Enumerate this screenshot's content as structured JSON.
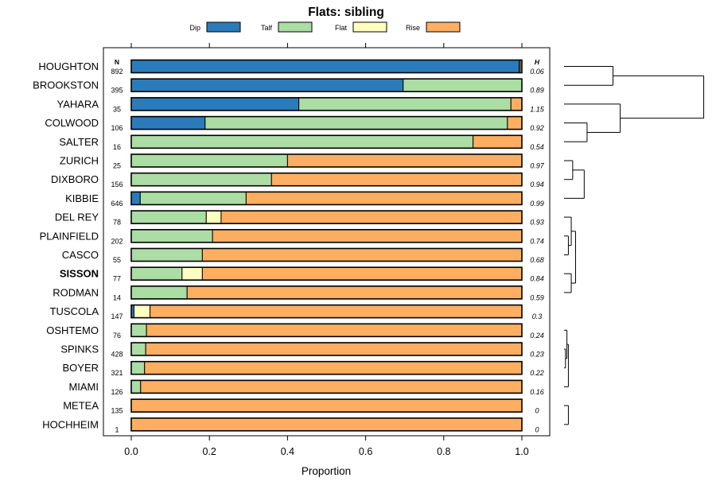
{
  "colors": {
    "Dip": "#2b7bba",
    "Talf": "#abdda4",
    "Flat": "#ffffbf",
    "Rise": "#fdae61"
  },
  "chart_data": {
    "type": "bar",
    "orientation": "horizontal",
    "stacked": true,
    "title": "Flats: sibling",
    "xlabel": "Proportion",
    "ylabel": "",
    "xlim": [
      0,
      1
    ],
    "xticks": [
      "0.0",
      "0.2",
      "0.4",
      "0.6",
      "0.8",
      "1.0"
    ],
    "n_header": "N",
    "h_header": "H",
    "legend": [
      "Dip",
      "Talf",
      "Flat",
      "Rise"
    ],
    "categories": [
      "HOUGHTON",
      "BROOKSTON",
      "YAHARA",
      "COLWOOD",
      "SALTER",
      "ZURICH",
      "DIXBORO",
      "KIBBIE",
      "DEL REY",
      "PLAINFIELD",
      "CASCO",
      "SISSON",
      "RODMAN",
      "TUSCOLA",
      "OSHTEMO",
      "SPINKS",
      "BOYER",
      "MIAMI",
      "METEA",
      "HOCHHEIM"
    ],
    "highlighted": "SISSON",
    "n": [
      "892",
      "395",
      "35",
      "106",
      "16",
      "25",
      "156",
      "646",
      "78",
      "202",
      "55",
      "77",
      "14",
      "147",
      "76",
      "428",
      "321",
      "126",
      "135",
      "1"
    ],
    "h": [
      "0.06",
      "0.89",
      "1.15",
      "0.92",
      "0.54",
      "0.97",
      "0.94",
      "0.99",
      "0.93",
      "0.74",
      "0.68",
      "0.84",
      "0.59",
      "0.3",
      "0.24",
      "0.23",
      "0.22",
      "0.16",
      "0",
      "0"
    ],
    "series": [
      {
        "name": "Dip",
        "values": [
          0.993,
          0.696,
          0.429,
          0.189,
          0,
          0,
          0,
          0.023,
          0,
          0,
          0,
          0,
          0,
          0.007,
          0,
          0,
          0,
          0,
          0,
          0
        ]
      },
      {
        "name": "Talf",
        "values": [
          0.003,
          0.304,
          0.543,
          0.774,
          0.875,
          0.4,
          0.359,
          0.271,
          0.192,
          0.208,
          0.182,
          0.13,
          0.143,
          0,
          0.039,
          0.037,
          0.034,
          0.024,
          0,
          0
        ]
      },
      {
        "name": "Flat",
        "values": [
          0,
          0,
          0,
          0,
          0,
          0,
          0,
          0,
          0.038,
          0,
          0,
          0.052,
          0,
          0.041,
          0,
          0,
          0,
          0,
          0,
          0
        ]
      },
      {
        "name": "Rise",
        "values": [
          0.004,
          0,
          0.028,
          0.037,
          0.125,
          0.6,
          0.641,
          0.706,
          0.77,
          0.792,
          0.818,
          0.818,
          0.857,
          0.952,
          0.961,
          0.963,
          0.966,
          0.976,
          1.0,
          1.0
        ]
      }
    ],
    "dendrogram": {
      "type": "hierarchical-clustering",
      "leaves": [
        "HOUGHTON",
        "BROOKSTON",
        "YAHARA",
        "COLWOOD",
        "SALTER",
        "ZURICH",
        "DIXBORO",
        "KIBBIE",
        "DEL REY",
        "PLAINFIELD",
        "CASCO",
        "SISSON",
        "RODMAN",
        "TUSCOLA",
        "OSHTEMO",
        "SPINKS",
        "BOYER",
        "MIAMI",
        "METEA",
        "HOCHHEIM"
      ],
      "merges": [
        {
          "left": "HOUGHTON",
          "right": "BROOKSTON",
          "height": 0.34
        },
        {
          "left": "COLWOOD",
          "right": "SALTER",
          "height": 0.16
        },
        {
          "left": "YAHARA",
          "right": "COLWOOD+SALTER",
          "height": 0.39
        },
        {
          "left": "HOUGHTON+BROOKSTON",
          "right": "YAHARA+COLWOOD+SALTER",
          "height": 0.97
        },
        {
          "left": "ZURICH",
          "right": "DIXBORO",
          "height": 0.06
        },
        {
          "left": "ZURICH+DIXBORO",
          "right": "KIBBIE",
          "height": 0.14
        },
        {
          "left": "PLAINFIELD",
          "right": "CASCO",
          "height": 0.03
        },
        {
          "left": "DEL REY",
          "right": "PLAINFIELD+CASCO",
          "height": 0.05
        },
        {
          "left": "SISSON",
          "right": "RODMAN",
          "height": 0.05
        },
        {
          "left": "DEL REY+PLAINFIELD+CASCO",
          "right": "SISSON+RODMAN",
          "height": 0.08
        },
        {
          "left": "SPINKS",
          "right": "BOYER",
          "height": 0.01
        },
        {
          "left": "OSHTEMO",
          "right": "SPINKS+BOYER",
          "height": 0.02
        },
        {
          "left": "MIAMI",
          "right": "OSHTEMO+SPINKS+BOYER",
          "height": 0.03
        },
        {
          "left": "TUSCOLA",
          "right": "OSHTEMO+SPINKS+BOYER+MIAMI",
          "height": 0.05
        },
        {
          "left": "METEA",
          "right": "HOCHHEIM",
          "height": 0.03
        },
        {
          "left": "TUSCOLA+OSHTEMO+SPINKS+BOYER+MIAMI",
          "right": "METEA+HOCHHEIM",
          "height": 0.06
        },
        {
          "left": "DEL REY+PLAINFIELD+CASCO+SISSON+RODMAN",
          "right": "TUSCOLA+OSHTEMO+SPINKS+BOYER+MIAMI+METEA+HOCHHEIM",
          "height": 0.14
        },
        {
          "left": "ZURICH+DIXBORO+KIBBIE",
          "right": "DEL REY+PLAINFIELD+CASCO+SISSON+RODMAN+TUSCOLA+OSHTEMO+SPINKS+BOYER+MIAMI+METEA+HOCHHEIM",
          "height": 0.4
        },
        {
          "left": "HOUGHTON+BROOKSTON+YAHARA+COLWOOD+SALTER",
          "right": "ZURICH+DIXBORO+KIBBIE+DEL REY+PLAINFIELD+CASCO+SISSON+RODMAN+TUSCOLA+OSHTEMO+SPINKS+BOYER+MIAMI+METEA+HOCHHEIM",
          "height": 1.0
        }
      ]
    }
  }
}
